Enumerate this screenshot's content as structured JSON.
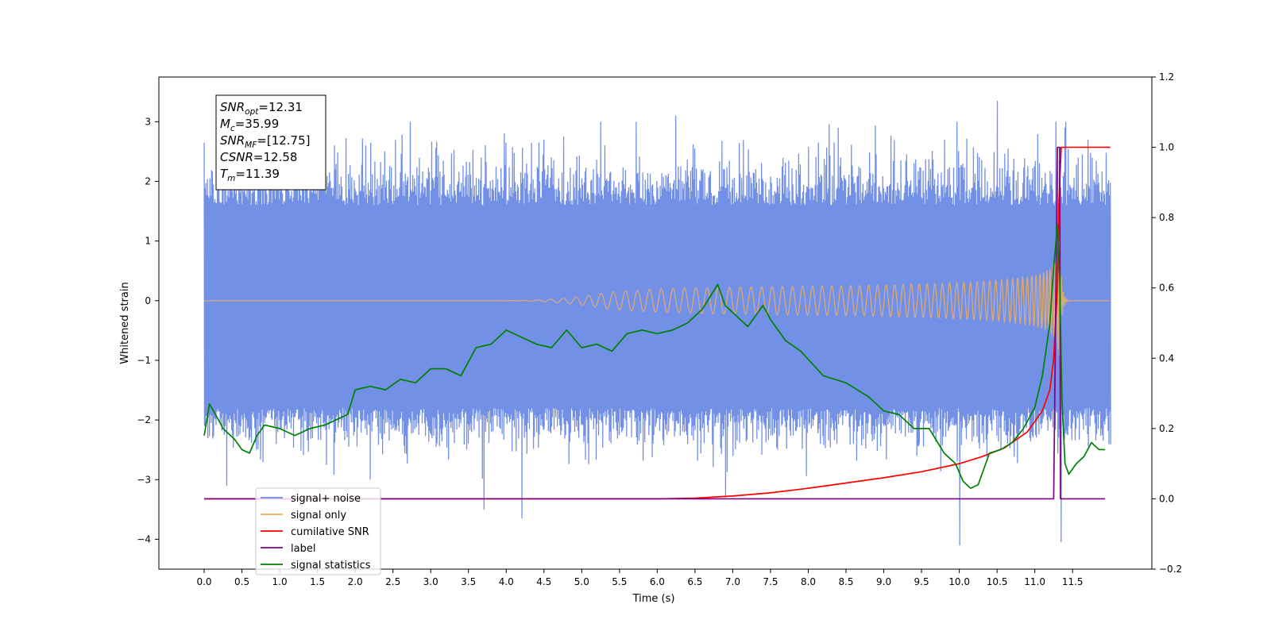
{
  "chart_data": {
    "type": "line",
    "title": "",
    "xlabel": "Time (s)",
    "ylabel_left": "Whitened strain",
    "ylabel_right": "",
    "xlim": [
      -0.6,
      12.55
    ],
    "ylim_left": [
      -4.5,
      3.75
    ],
    "ylim_right": [
      -0.2,
      1.2
    ],
    "x_ticks": [
      0.0,
      0.5,
      1.0,
      1.5,
      2.0,
      2.5,
      3.0,
      3.5,
      4.0,
      4.5,
      5.0,
      5.5,
      6.0,
      6.5,
      7.0,
      7.5,
      8.0,
      8.5,
      9.0,
      9.5,
      10.0,
      10.5,
      11.0,
      11.5
    ],
    "x_tick_labels": [
      "0.0",
      "0.5",
      "1.0",
      "1.5",
      "2.0",
      "2.5",
      "3.0",
      "3.5",
      "4.0",
      "4.5",
      "5.0",
      "5.5",
      "6.0",
      "6.5",
      "7.0",
      "7.5",
      "8.0",
      "8.5",
      "9.0",
      "9.5",
      "10.0",
      "10.5",
      "11.0",
      "11.5"
    ],
    "y_left_ticks": [
      3,
      2,
      1,
      0,
      -1,
      -2,
      -3,
      -4
    ],
    "y_left_tick_labels": [
      "3",
      "2",
      "1",
      "0",
      "−1",
      "−2",
      "−3",
      "−4"
    ],
    "y_right_ticks": [
      1.2,
      1.0,
      0.8,
      0.6,
      0.4,
      0.2,
      0.0,
      -0.2
    ],
    "y_right_tick_labels": [
      "1.2",
      "1.0",
      "0.8",
      "0.6",
      "0.4",
      "0.2",
      "0.0",
      "−0.2"
    ],
    "grid": false,
    "legend_placement": "lower-left",
    "colors": {
      "noise": "#6b8ae6",
      "signal": "#f0b060",
      "snr": "#ff0000",
      "label": "#800080",
      "stats": "#008000"
    },
    "stats_box": [
      {
        "base": "SNR",
        "sub": "opt",
        "value": "=12.31"
      },
      {
        "base": "M",
        "sub": "c",
        "value": "=35.99"
      },
      {
        "base": "SNR",
        "sub": "MF",
        "value": "=[12.75]"
      },
      {
        "base": "CSNR",
        "sub": "",
        "value": "=12.58"
      },
      {
        "base": "T",
        "sub": "m",
        "value": "=11.39"
      }
    ],
    "legend": [
      {
        "label": "signal+ noise",
        "color": "#6b8ae6"
      },
      {
        "label": "signal only",
        "color": "#f0b060"
      },
      {
        "label": "cumilative SNR",
        "color": "#ff0000"
      },
      {
        "label": "label",
        "color": "#800080"
      },
      {
        "label": "signal statistics",
        "color": "#008000"
      }
    ],
    "series": [
      {
        "name": "signal+ noise",
        "axis": "left",
        "style": "noise",
        "x_range": [
          0.0,
          12.0
        ],
        "envelope_upper": 1.6,
        "envelope_lower": -1.8,
        "spikes": [
          [
            0.0,
            2.65
          ],
          [
            0.3,
            -3.1
          ],
          [
            1.0,
            2.9
          ],
          [
            2.2,
            -3.0
          ],
          [
            3.7,
            -3.5
          ],
          [
            4.2,
            -3.65
          ],
          [
            4.5,
            2.7
          ],
          [
            6.25,
            3.1
          ],
          [
            6.9,
            -3.3
          ],
          [
            8.4,
            2.9
          ],
          [
            9.8,
            2.7
          ],
          [
            10.0,
            -4.1
          ],
          [
            10.5,
            3.35
          ],
          [
            11.35,
            -4.05
          ],
          [
            11.4,
            2.9
          ],
          [
            11.7,
            2.7
          ]
        ]
      },
      {
        "name": "signal only",
        "axis": "left",
        "style": "chirp",
        "x_range": [
          0.0,
          12.0
        ],
        "merger_time": 11.33,
        "peak_amplitude": 1.0
      },
      {
        "name": "cumilative SNR",
        "axis": "right",
        "x": [
          0.0,
          6.0,
          6.5,
          7.0,
          7.5,
          8.0,
          8.5,
          9.0,
          9.5,
          10.0,
          10.3,
          10.6,
          10.9,
          11.1,
          11.2,
          11.25,
          11.3,
          11.32,
          11.35,
          11.5,
          12.0
        ],
        "y": [
          0.0,
          0.0,
          0.002,
          0.008,
          0.017,
          0.03,
          0.045,
          0.06,
          0.077,
          0.1,
          0.12,
          0.145,
          0.19,
          0.25,
          0.31,
          0.4,
          0.6,
          0.85,
          1.0,
          1.0,
          1.0
        ]
      },
      {
        "name": "label",
        "axis": "right",
        "x": [
          0.0,
          11.25,
          11.3,
          11.33,
          11.34,
          11.36,
          11.37,
          11.93
        ],
        "y": [
          0.0,
          0.0,
          1.0,
          1.0,
          0.0,
          0.0,
          0.0,
          0.0
        ]
      },
      {
        "name": "signal statistics",
        "axis": "right",
        "x": [
          0.0,
          0.07,
          0.15,
          0.25,
          0.4,
          0.5,
          0.6,
          0.7,
          0.8,
          1.0,
          1.2,
          1.4,
          1.6,
          1.8,
          1.9,
          2.0,
          2.2,
          2.4,
          2.6,
          2.8,
          3.0,
          3.2,
          3.4,
          3.6,
          3.8,
          4.0,
          4.2,
          4.4,
          4.6,
          4.8,
          5.0,
          5.2,
          5.4,
          5.6,
          5.8,
          6.0,
          6.2,
          6.4,
          6.6,
          6.8,
          6.9,
          7.0,
          7.2,
          7.4,
          7.5,
          7.7,
          7.9,
          8.2,
          8.5,
          8.8,
          9.0,
          9.2,
          9.4,
          9.6,
          9.8,
          9.95,
          10.05,
          10.15,
          10.25,
          10.4,
          10.55,
          10.7,
          10.85,
          11.0,
          11.1,
          11.2,
          11.25,
          11.3,
          11.33,
          11.36,
          11.4,
          11.45,
          11.55,
          11.65,
          11.75,
          11.85,
          11.93
        ],
        "y": [
          0.18,
          0.27,
          0.24,
          0.2,
          0.17,
          0.14,
          0.13,
          0.18,
          0.21,
          0.2,
          0.18,
          0.2,
          0.21,
          0.23,
          0.24,
          0.31,
          0.32,
          0.31,
          0.34,
          0.33,
          0.37,
          0.37,
          0.35,
          0.43,
          0.44,
          0.48,
          0.46,
          0.44,
          0.43,
          0.48,
          0.43,
          0.44,
          0.42,
          0.47,
          0.48,
          0.47,
          0.48,
          0.5,
          0.54,
          0.61,
          0.55,
          0.53,
          0.49,
          0.55,
          0.51,
          0.45,
          0.42,
          0.35,
          0.33,
          0.29,
          0.25,
          0.24,
          0.2,
          0.2,
          0.13,
          0.1,
          0.05,
          0.03,
          0.04,
          0.13,
          0.14,
          0.16,
          0.2,
          0.26,
          0.35,
          0.5,
          0.66,
          0.78,
          0.62,
          0.28,
          0.1,
          0.07,
          0.1,
          0.12,
          0.16,
          0.14,
          0.14
        ]
      }
    ]
  }
}
